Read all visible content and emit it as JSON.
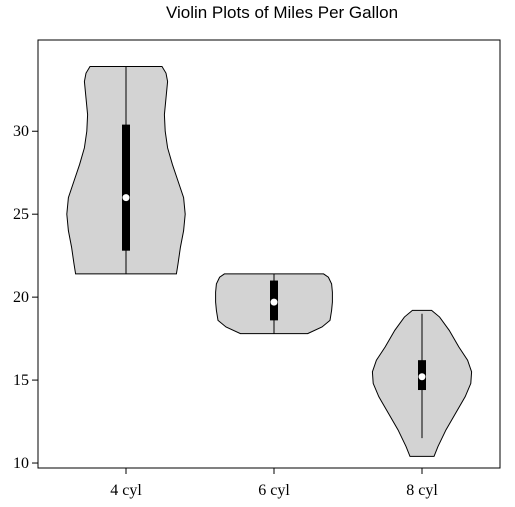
{
  "chart_data": {
    "type": "violin",
    "title": "Violin Plots of Miles Per Gallon",
    "xlabel": "",
    "ylabel": "",
    "categories": [
      "4 cyl",
      "6 cyl",
      "8 cyl"
    ],
    "ylim": [
      9.7,
      35.5
    ],
    "yticks": [
      10,
      15,
      20,
      25,
      30
    ],
    "grid": false,
    "colors": {
      "violin_fill": "#d3d3d3",
      "outline": "#000000",
      "box": "#000000",
      "median": "#ffffff"
    },
    "series": [
      {
        "category": "4 cyl",
        "min": 21.4,
        "q1": 22.8,
        "median": 26.0,
        "q3": 30.4,
        "max": 33.9,
        "density": [
          [
            21.4,
            0.63
          ],
          [
            22.0,
            0.65
          ],
          [
            23.0,
            0.68
          ],
          [
            24.0,
            0.72
          ],
          [
            25.0,
            0.74
          ],
          [
            26.0,
            0.72
          ],
          [
            27.0,
            0.65
          ],
          [
            28.0,
            0.58
          ],
          [
            29.0,
            0.52
          ],
          [
            30.0,
            0.49
          ],
          [
            31.0,
            0.48
          ],
          [
            32.0,
            0.5
          ],
          [
            33.0,
            0.52
          ],
          [
            33.5,
            0.5
          ],
          [
            33.9,
            0.45
          ]
        ]
      },
      {
        "category": "6 cyl",
        "min": 17.8,
        "q1": 18.6,
        "median": 19.7,
        "q3": 21.0,
        "max": 21.4,
        "density": [
          [
            17.8,
            0.42
          ],
          [
            18.2,
            0.6
          ],
          [
            18.6,
            0.7
          ],
          [
            19.2,
            0.72
          ],
          [
            19.7,
            0.73
          ],
          [
            20.3,
            0.73
          ],
          [
            20.8,
            0.72
          ],
          [
            21.2,
            0.68
          ],
          [
            21.4,
            0.62
          ]
        ]
      },
      {
        "category": "8 cyl",
        "min": 10.4,
        "q1": 14.4,
        "median": 15.2,
        "q3": 16.2,
        "max": 19.2,
        "density": [
          [
            10.4,
            0.15
          ],
          [
            11.0,
            0.2
          ],
          [
            12.0,
            0.3
          ],
          [
            13.0,
            0.42
          ],
          [
            14.0,
            0.54
          ],
          [
            14.8,
            0.61
          ],
          [
            15.5,
            0.62
          ],
          [
            16.2,
            0.57
          ],
          [
            17.0,
            0.46
          ],
          [
            18.0,
            0.34
          ],
          [
            18.8,
            0.22
          ],
          [
            19.2,
            0.12
          ]
        ]
      }
    ],
    "whiskers": [
      [
        21.4,
        33.9
      ],
      [
        17.8,
        21.4
      ],
      [
        11.5,
        19.0
      ]
    ]
  }
}
